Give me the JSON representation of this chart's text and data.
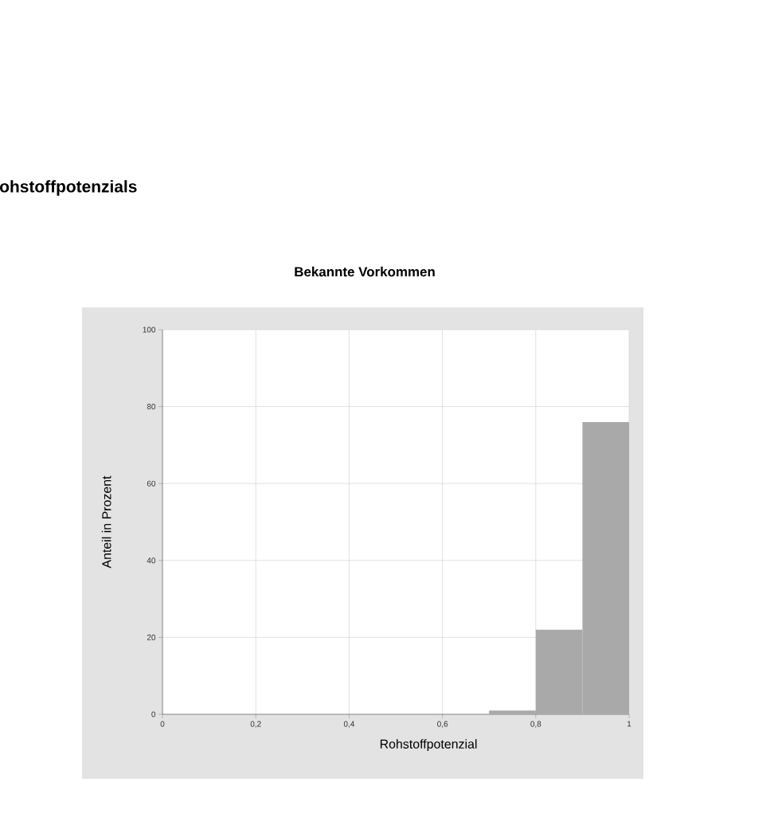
{
  "chart_data": {
    "type": "histogram",
    "title": "Bekannte Vorkommen",
    "xlabel": "Rohstoffpotenzial",
    "ylabel": "Anteil in Prozent",
    "annotations": [
      "ohstoffpotenzials"
    ],
    "bins": [
      0.7,
      0.8,
      0.9,
      1.0
    ],
    "values": [
      1,
      22,
      76
    ],
    "color": "#a9a9a9",
    "xlim": [
      0,
      1
    ],
    "xticks": [
      0,
      {
        "value": 0.2,
        "label": "0,2"
      },
      {
        "value": 0.4,
        "label": "0,4"
      },
      {
        "value": 0.6,
        "label": "0,6"
      },
      {
        "value": 0.8,
        "label": "0,8"
      },
      1
    ],
    "ylim": [
      0,
      100
    ],
    "yticks": [
      0,
      20,
      40,
      60,
      80,
      100
    ],
    "grid": true
  }
}
